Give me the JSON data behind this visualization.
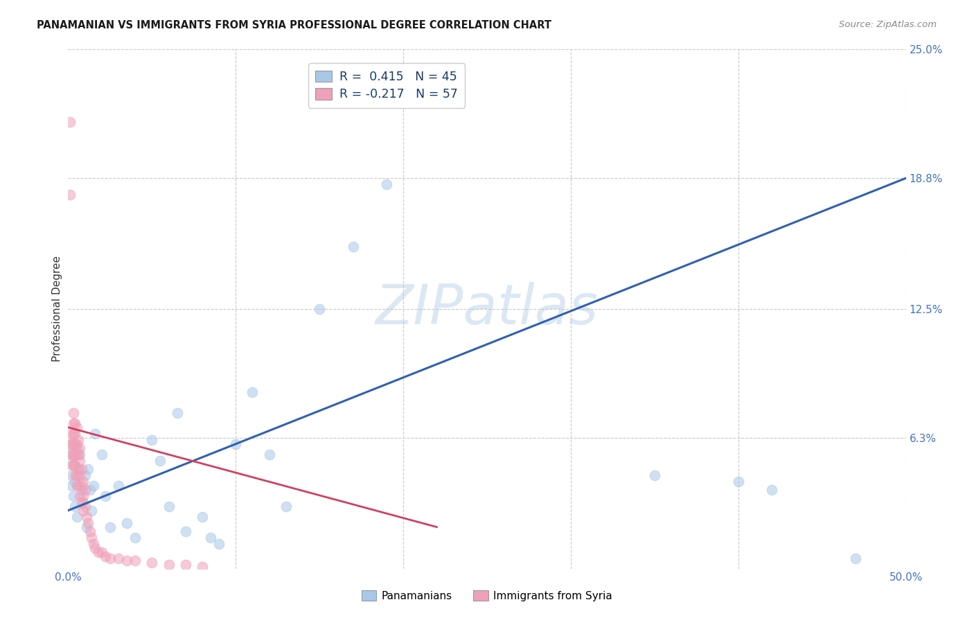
{
  "title": "PANAMANIAN VS IMMIGRANTS FROM SYRIA PROFESSIONAL DEGREE CORRELATION CHART",
  "source": "Source: ZipAtlas.com",
  "xlabel_color": "#4472c4",
  "ylabel": "Professional Degree",
  "xlim": [
    0.0,
    0.5
  ],
  "ylim": [
    0.0,
    0.25
  ],
  "ytick_labels_right": [
    "25.0%",
    "18.8%",
    "12.5%",
    "6.3%"
  ],
  "ytick_vals_right": [
    0.25,
    0.188,
    0.125,
    0.063
  ],
  "grid_color": "#c8c8c8",
  "background_color": "#ffffff",
  "watermark_text": "ZIPatlas",
  "color_blue": "#a8c8e8",
  "color_pink": "#f0a0b8",
  "line_blue": "#3060b0",
  "line_pink": "#d04060",
  "legend_label1": "Panamanians",
  "legend_label2": "Immigrants from Syria",
  "blue_line_x0": 0.0,
  "blue_line_y0": 0.028,
  "blue_line_x1": 0.5,
  "blue_line_y1": 0.188,
  "pink_line_x0": 0.0,
  "pink_line_y0": 0.068,
  "pink_line_x1": 0.22,
  "pink_line_y1": 0.02,
  "blue_scatter_x": [
    0.001,
    0.002,
    0.002,
    0.003,
    0.003,
    0.004,
    0.004,
    0.005,
    0.005,
    0.006,
    0.007,
    0.008,
    0.009,
    0.01,
    0.011,
    0.012,
    0.013,
    0.014,
    0.015,
    0.016,
    0.02,
    0.022,
    0.025,
    0.03,
    0.035,
    0.04,
    0.05,
    0.055,
    0.06,
    0.065,
    0.07,
    0.08,
    0.085,
    0.09,
    0.1,
    0.11,
    0.12,
    0.13,
    0.15,
    0.17,
    0.19,
    0.35,
    0.4,
    0.42,
    0.47
  ],
  "blue_scatter_y": [
    0.055,
    0.045,
    0.04,
    0.05,
    0.035,
    0.042,
    0.03,
    0.058,
    0.025,
    0.048,
    0.055,
    0.038,
    0.032,
    0.045,
    0.02,
    0.048,
    0.038,
    0.028,
    0.04,
    0.065,
    0.055,
    0.035,
    0.02,
    0.04,
    0.022,
    0.015,
    0.062,
    0.052,
    0.03,
    0.075,
    0.018,
    0.025,
    0.015,
    0.012,
    0.06,
    0.085,
    0.055,
    0.03,
    0.125,
    0.155,
    0.185,
    0.045,
    0.042,
    0.038,
    0.005
  ],
  "pink_scatter_x": [
    0.001,
    0.001,
    0.001,
    0.002,
    0.002,
    0.002,
    0.002,
    0.003,
    0.003,
    0.003,
    0.003,
    0.003,
    0.003,
    0.004,
    0.004,
    0.004,
    0.004,
    0.004,
    0.004,
    0.005,
    0.005,
    0.005,
    0.005,
    0.005,
    0.006,
    0.006,
    0.006,
    0.006,
    0.007,
    0.007,
    0.007,
    0.007,
    0.008,
    0.008,
    0.008,
    0.009,
    0.009,
    0.009,
    0.01,
    0.01,
    0.011,
    0.012,
    0.013,
    0.014,
    0.015,
    0.016,
    0.018,
    0.02,
    0.022,
    0.025,
    0.03,
    0.035,
    0.04,
    0.05,
    0.06,
    0.07,
    0.08
  ],
  "pink_scatter_y": [
    0.215,
    0.18,
    0.06,
    0.065,
    0.06,
    0.055,
    0.05,
    0.075,
    0.07,
    0.065,
    0.06,
    0.055,
    0.05,
    0.07,
    0.065,
    0.06,
    0.055,
    0.05,
    0.045,
    0.068,
    0.06,
    0.055,
    0.045,
    0.04,
    0.062,
    0.055,
    0.048,
    0.04,
    0.058,
    0.052,
    0.045,
    0.035,
    0.048,
    0.04,
    0.032,
    0.042,
    0.035,
    0.028,
    0.038,
    0.03,
    0.025,
    0.022,
    0.018,
    0.015,
    0.012,
    0.01,
    0.008,
    0.008,
    0.006,
    0.005,
    0.005,
    0.004,
    0.004,
    0.003,
    0.002,
    0.002,
    0.001
  ]
}
